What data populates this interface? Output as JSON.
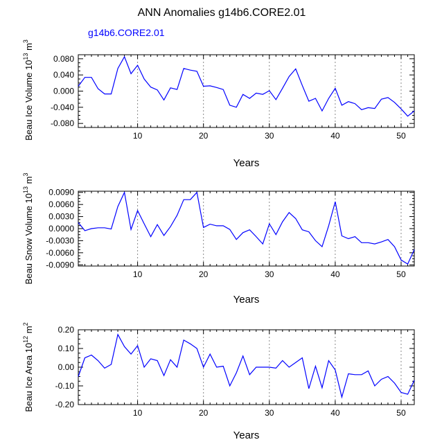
{
  "title": "ANN Anomalies g14b6.CORE2.01",
  "legend_label": "g14b6.CORE2.01",
  "colors": {
    "series": "#0000ff",
    "axis": "#000000",
    "grid": "#888888"
  },
  "chart_data": [
    {
      "type": "line",
      "ylabel": "Beau Ice Volume 10",
      "ylabel_exp": "13",
      "ylabel_unit": " m",
      "ylabel_unit_exp": "3",
      "xlabel": "Years",
      "xlim": [
        1,
        52
      ],
      "ylim": [
        -0.09,
        0.09
      ],
      "xticks": [
        10,
        20,
        30,
        40,
        50
      ],
      "yticks": [
        0.08,
        0.04,
        0.0,
        -0.04,
        -0.08
      ],
      "ytick_labels": [
        "0.080",
        "0.040",
        "0.000",
        "-0.040",
        "-0.080"
      ],
      "grid_x": [
        10,
        20,
        30,
        40,
        50
      ],
      "x": [
        1,
        2,
        3,
        4,
        5,
        6,
        7,
        8,
        9,
        10,
        11,
        12,
        13,
        14,
        15,
        16,
        17,
        18,
        19,
        20,
        21,
        22,
        23,
        24,
        25,
        26,
        27,
        28,
        29,
        30,
        31,
        32,
        33,
        34,
        35,
        36,
        37,
        38,
        39,
        40,
        41,
        42,
        43,
        44,
        45,
        46,
        47,
        48,
        49,
        50,
        51,
        52
      ],
      "series": [
        {
          "name": "g14b6.CORE2.01",
          "values": [
            0.012,
            0.034,
            0.034,
            0.006,
            -0.007,
            -0.007,
            0.056,
            0.085,
            0.043,
            0.064,
            0.03,
            0.01,
            0.003,
            -0.022,
            0.008,
            0.004,
            0.056,
            0.052,
            0.049,
            0.012,
            0.013,
            0.009,
            0.004,
            -0.035,
            -0.04,
            -0.008,
            -0.018,
            -0.005,
            -0.008,
            0.001,
            -0.021,
            0.007,
            0.036,
            0.055,
            0.014,
            -0.025,
            -0.018,
            -0.049,
            -0.018,
            0.007,
            -0.035,
            -0.026,
            -0.031,
            -0.046,
            -0.041,
            -0.043,
            -0.02,
            -0.016,
            -0.028,
            -0.044,
            -0.062,
            -0.049
          ]
        }
      ]
    },
    {
      "type": "line",
      "ylabel": "Beau Snow Volume 10",
      "ylabel_exp": "13",
      "ylabel_unit": " m",
      "ylabel_unit_exp": "3",
      "xlabel": "Years",
      "xlim": [
        1,
        52
      ],
      "ylim": [
        -0.0093,
        0.0093
      ],
      "xticks": [
        10,
        20,
        30,
        40,
        50
      ],
      "yticks": [
        0.009,
        0.006,
        0.003,
        0.0,
        -0.003,
        -0.006,
        -0.009
      ],
      "ytick_labels": [
        "0.0090",
        "0.0060",
        "0.0030",
        "0.0000",
        "-0.0030",
        "-0.0060",
        "-0.0090"
      ],
      "grid_x": [
        10,
        20,
        30,
        40,
        50
      ],
      "x": [
        1,
        2,
        3,
        4,
        5,
        6,
        7,
        8,
        9,
        10,
        11,
        12,
        13,
        14,
        15,
        16,
        17,
        18,
        19,
        20,
        21,
        22,
        23,
        24,
        25,
        26,
        27,
        28,
        29,
        30,
        31,
        32,
        33,
        34,
        35,
        36,
        37,
        38,
        39,
        40,
        41,
        42,
        43,
        44,
        45,
        46,
        47,
        48,
        49,
        50,
        51,
        52
      ],
      "series": [
        {
          "name": "g14b6.CORE2.01",
          "values": [
            0.0015,
            -0.0005,
            0.0,
            0.0002,
            0.0002,
            -0.0001,
            0.0055,
            0.009,
            -0.0002,
            0.0045,
            0.0012,
            -0.002,
            0.001,
            -0.0017,
            0.0005,
            0.0033,
            0.0072,
            0.0072,
            0.009,
            0.0003,
            0.0011,
            0.0007,
            0.0007,
            -0.0002,
            -0.0027,
            -0.001,
            -0.0003,
            -0.002,
            -0.0038,
            0.0012,
            -0.0015,
            0.0017,
            0.004,
            0.0025,
            -0.0003,
            -0.0008,
            -0.003,
            -0.0045,
            0.0007,
            0.0067,
            -0.0018,
            -0.0025,
            -0.002,
            -0.0035,
            -0.0035,
            -0.0038,
            -0.0033,
            -0.0027,
            -0.0045,
            -0.0078,
            -0.0088,
            -0.0052
          ]
        }
      ]
    },
    {
      "type": "line",
      "ylabel": "Beau Ice Area 10",
      "ylabel_exp": "12",
      "ylabel_unit": " m",
      "ylabel_unit_exp": "2",
      "xlabel": "Years",
      "xlim": [
        1,
        52
      ],
      "ylim": [
        -0.2,
        0.2
      ],
      "xticks": [
        10,
        20,
        30,
        40,
        50
      ],
      "yticks": [
        0.2,
        0.1,
        0.0,
        -0.1,
        -0.2
      ],
      "ytick_labels": [
        "0.20",
        "0.10",
        "0.00",
        "-0.10",
        "-0.20"
      ],
      "grid_x": [
        10,
        20,
        30,
        40,
        50
      ],
      "x": [
        1,
        2,
        3,
        4,
        5,
        6,
        7,
        8,
        9,
        10,
        11,
        12,
        13,
        14,
        15,
        16,
        17,
        18,
        19,
        20,
        21,
        22,
        23,
        24,
        25,
        26,
        27,
        28,
        29,
        30,
        31,
        32,
        33,
        34,
        35,
        36,
        37,
        38,
        39,
        40,
        41,
        42,
        43,
        44,
        45,
        46,
        47,
        48,
        49,
        50,
        51,
        52
      ],
      "series": [
        {
          "name": "g14b6.CORE2.01",
          "values": [
            -0.05,
            0.05,
            0.065,
            0.035,
            -0.005,
            0.015,
            0.175,
            0.11,
            0.07,
            0.115,
            0.0,
            0.045,
            0.035,
            -0.045,
            0.04,
            0.0,
            0.145,
            0.125,
            0.1,
            0.0,
            0.07,
            0.0,
            0.005,
            -0.1,
            -0.03,
            0.06,
            -0.04,
            0.0,
            0.0,
            0.0,
            -0.005,
            0.035,
            0.0,
            0.025,
            0.05,
            -0.115,
            0.005,
            -0.11,
            0.035,
            -0.015,
            -0.16,
            -0.035,
            -0.04,
            -0.04,
            -0.02,
            -0.1,
            -0.065,
            -0.05,
            -0.085,
            -0.135,
            -0.145,
            -0.07
          ]
        }
      ]
    }
  ]
}
